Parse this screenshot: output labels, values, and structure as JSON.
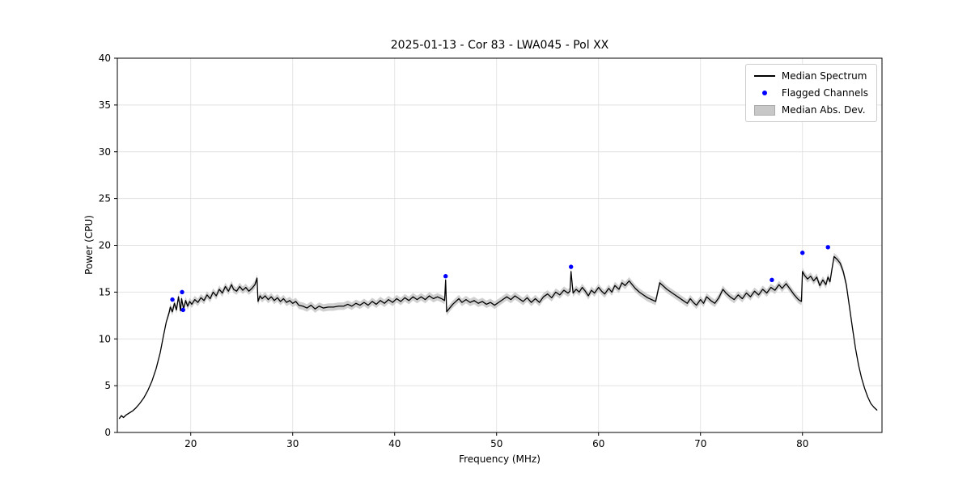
{
  "chart_data": {
    "type": "line",
    "title": "2025-01-13 - Cor 83 - LWA045 - Pol XX",
    "xlabel": "Frequency (MHz)",
    "ylabel": "Power (CPU)",
    "xlim": [
      12.8,
      87.8
    ],
    "ylim": [
      0,
      40
    ],
    "xticks": [
      20,
      30,
      40,
      50,
      60,
      70,
      80
    ],
    "yticks": [
      0,
      5,
      10,
      15,
      20,
      25,
      30,
      35,
      40
    ],
    "grid": true,
    "legend": {
      "position": "upper right",
      "items": [
        {
          "label": "Median Spectrum",
          "type": "line",
          "color": "#000000"
        },
        {
          "label": "Flagged Channels",
          "type": "dot",
          "color": "#0000ff"
        },
        {
          "label": "Median Abs. Dev.",
          "type": "patch",
          "color": "#c8c8c8"
        }
      ]
    },
    "series": [
      {
        "name": "Median Spectrum",
        "color": "#000000",
        "points": [
          [
            13.0,
            1.5
          ],
          [
            13.2,
            1.8
          ],
          [
            13.4,
            1.6
          ],
          [
            13.7,
            1.9
          ],
          [
            14.0,
            2.1
          ],
          [
            14.3,
            2.3
          ],
          [
            14.6,
            2.6
          ],
          [
            15.0,
            3.1
          ],
          [
            15.4,
            3.7
          ],
          [
            15.8,
            4.5
          ],
          [
            16.2,
            5.5
          ],
          [
            16.6,
            6.8
          ],
          [
            17.0,
            8.5
          ],
          [
            17.3,
            10.2
          ],
          [
            17.6,
            11.8
          ],
          [
            17.9,
            12.9
          ],
          [
            18.0,
            13.4
          ],
          [
            18.2,
            12.9
          ],
          [
            18.4,
            13.8
          ],
          [
            18.6,
            13.1
          ],
          [
            18.8,
            14.5
          ],
          [
            19.0,
            13.0
          ],
          [
            19.1,
            14.3
          ],
          [
            19.3,
            13.2
          ],
          [
            19.5,
            14.1
          ],
          [
            19.7,
            13.5
          ],
          [
            19.9,
            14.0
          ],
          [
            20.1,
            13.7
          ],
          [
            20.4,
            14.2
          ],
          [
            20.7,
            13.9
          ],
          [
            21.0,
            14.4
          ],
          [
            21.3,
            14.1
          ],
          [
            21.6,
            14.7
          ],
          [
            21.9,
            14.3
          ],
          [
            22.2,
            15.0
          ],
          [
            22.5,
            14.6
          ],
          [
            22.8,
            15.3
          ],
          [
            23.1,
            14.9
          ],
          [
            23.4,
            15.6
          ],
          [
            23.7,
            15.1
          ],
          [
            24.0,
            15.8
          ],
          [
            24.2,
            15.3
          ],
          [
            24.5,
            15.1
          ],
          [
            24.8,
            15.6
          ],
          [
            25.1,
            15.2
          ],
          [
            25.4,
            15.5
          ],
          [
            25.7,
            15.1
          ],
          [
            26.0,
            15.4
          ],
          [
            26.3,
            15.8
          ],
          [
            26.5,
            16.5
          ],
          [
            26.6,
            14.0
          ],
          [
            26.8,
            14.6
          ],
          [
            27.0,
            14.3
          ],
          [
            27.3,
            14.6
          ],
          [
            27.6,
            14.2
          ],
          [
            27.9,
            14.5
          ],
          [
            28.2,
            14.1
          ],
          [
            28.5,
            14.4
          ],
          [
            28.8,
            14.0
          ],
          [
            29.1,
            14.3
          ],
          [
            29.4,
            13.9
          ],
          [
            29.7,
            14.1
          ],
          [
            30.0,
            13.8
          ],
          [
            30.3,
            14.0
          ],
          [
            30.6,
            13.6
          ],
          [
            31.0,
            13.5
          ],
          [
            31.4,
            13.3
          ],
          [
            31.8,
            13.6
          ],
          [
            32.2,
            13.2
          ],
          [
            32.6,
            13.5
          ],
          [
            33.0,
            13.3
          ],
          [
            33.5,
            13.4
          ],
          [
            34.0,
            13.4
          ],
          [
            34.5,
            13.5
          ],
          [
            35.0,
            13.5
          ],
          [
            35.4,
            13.7
          ],
          [
            35.8,
            13.5
          ],
          [
            36.2,
            13.8
          ],
          [
            36.6,
            13.6
          ],
          [
            37.0,
            13.9
          ],
          [
            37.4,
            13.6
          ],
          [
            37.8,
            14.0
          ],
          [
            38.2,
            13.7
          ],
          [
            38.6,
            14.1
          ],
          [
            39.0,
            13.8
          ],
          [
            39.4,
            14.2
          ],
          [
            39.8,
            13.9
          ],
          [
            40.2,
            14.3
          ],
          [
            40.6,
            14.0
          ],
          [
            41.0,
            14.4
          ],
          [
            41.4,
            14.1
          ],
          [
            41.8,
            14.5
          ],
          [
            42.2,
            14.2
          ],
          [
            42.6,
            14.5
          ],
          [
            43.0,
            14.2
          ],
          [
            43.4,
            14.6
          ],
          [
            43.8,
            14.3
          ],
          [
            44.2,
            14.5
          ],
          [
            44.6,
            14.3
          ],
          [
            44.9,
            14.1
          ],
          [
            45.0,
            16.3
          ],
          [
            45.1,
            12.9
          ],
          [
            45.4,
            13.3
          ],
          [
            45.7,
            13.7
          ],
          [
            46.0,
            14.0
          ],
          [
            46.3,
            14.3
          ],
          [
            46.6,
            13.9
          ],
          [
            47.0,
            14.2
          ],
          [
            47.4,
            13.9
          ],
          [
            47.8,
            14.1
          ],
          [
            48.2,
            13.8
          ],
          [
            48.6,
            14.0
          ],
          [
            49.0,
            13.7
          ],
          [
            49.4,
            13.9
          ],
          [
            49.8,
            13.6
          ],
          [
            50.2,
            13.9
          ],
          [
            50.6,
            14.2
          ],
          [
            51.0,
            14.5
          ],
          [
            51.4,
            14.2
          ],
          [
            51.8,
            14.6
          ],
          [
            52.2,
            14.3
          ],
          [
            52.6,
            14.0
          ],
          [
            53.0,
            14.4
          ],
          [
            53.4,
            13.9
          ],
          [
            53.8,
            14.3
          ],
          [
            54.2,
            13.9
          ],
          [
            54.6,
            14.5
          ],
          [
            55.0,
            14.8
          ],
          [
            55.4,
            14.4
          ],
          [
            55.8,
            15.0
          ],
          [
            56.2,
            14.7
          ],
          [
            56.6,
            15.2
          ],
          [
            57.0,
            14.9
          ],
          [
            57.2,
            15.1
          ],
          [
            57.3,
            17.2
          ],
          [
            57.5,
            14.9
          ],
          [
            57.8,
            15.3
          ],
          [
            58.1,
            15.0
          ],
          [
            58.4,
            15.5
          ],
          [
            58.7,
            15.1
          ],
          [
            59.0,
            14.6
          ],
          [
            59.3,
            15.2
          ],
          [
            59.6,
            14.9
          ],
          [
            60.0,
            15.5
          ],
          [
            60.3,
            15.1
          ],
          [
            60.6,
            14.8
          ],
          [
            61.0,
            15.4
          ],
          [
            61.3,
            15.0
          ],
          [
            61.6,
            15.7
          ],
          [
            62.0,
            15.3
          ],
          [
            62.3,
            16.0
          ],
          [
            62.6,
            15.7
          ],
          [
            63.0,
            16.2
          ],
          [
            63.3,
            15.8
          ],
          [
            63.6,
            15.4
          ],
          [
            64.0,
            15.0
          ],
          [
            64.4,
            14.7
          ],
          [
            64.8,
            14.4
          ],
          [
            65.2,
            14.2
          ],
          [
            65.6,
            14.0
          ],
          [
            66.0,
            16.0
          ],
          [
            66.3,
            15.7
          ],
          [
            66.7,
            15.3
          ],
          [
            67.1,
            15.0
          ],
          [
            67.5,
            14.7
          ],
          [
            67.9,
            14.4
          ],
          [
            68.3,
            14.1
          ],
          [
            68.7,
            13.8
          ],
          [
            69.0,
            14.3
          ],
          [
            69.3,
            13.9
          ],
          [
            69.6,
            13.6
          ],
          [
            70.0,
            14.2
          ],
          [
            70.3,
            13.8
          ],
          [
            70.6,
            14.5
          ],
          [
            71.0,
            14.1
          ],
          [
            71.4,
            13.8
          ],
          [
            71.8,
            14.4
          ],
          [
            72.2,
            15.3
          ],
          [
            72.5,
            14.9
          ],
          [
            72.9,
            14.5
          ],
          [
            73.3,
            14.2
          ],
          [
            73.7,
            14.7
          ],
          [
            74.1,
            14.3
          ],
          [
            74.5,
            14.9
          ],
          [
            74.9,
            14.5
          ],
          [
            75.3,
            15.1
          ],
          [
            75.7,
            14.7
          ],
          [
            76.1,
            15.3
          ],
          [
            76.5,
            14.9
          ],
          [
            76.9,
            15.5
          ],
          [
            77.3,
            15.2
          ],
          [
            77.7,
            15.8
          ],
          [
            78.0,
            15.4
          ],
          [
            78.4,
            15.9
          ],
          [
            78.8,
            15.3
          ],
          [
            79.2,
            14.7
          ],
          [
            79.6,
            14.2
          ],
          [
            79.9,
            14.0
          ],
          [
            80.0,
            17.2
          ],
          [
            80.2,
            16.8
          ],
          [
            80.5,
            16.4
          ],
          [
            80.8,
            16.7
          ],
          [
            81.1,
            16.2
          ],
          [
            81.4,
            16.6
          ],
          [
            81.7,
            15.7
          ],
          [
            82.0,
            16.3
          ],
          [
            82.3,
            15.8
          ],
          [
            82.5,
            16.6
          ],
          [
            82.7,
            16.1
          ],
          [
            82.9,
            17.5
          ],
          [
            83.1,
            18.8
          ],
          [
            83.4,
            18.5
          ],
          [
            83.7,
            18.1
          ],
          [
            84.0,
            17.2
          ],
          [
            84.3,
            15.8
          ],
          [
            84.6,
            13.5
          ],
          [
            84.9,
            11.2
          ],
          [
            85.2,
            9.0
          ],
          [
            85.5,
            7.2
          ],
          [
            85.8,
            5.8
          ],
          [
            86.1,
            4.7
          ],
          [
            86.4,
            3.8
          ],
          [
            86.7,
            3.1
          ],
          [
            87.0,
            2.7
          ],
          [
            87.3,
            2.4
          ]
        ]
      }
    ],
    "flagged_channels": [
      [
        18.2,
        14.2
      ],
      [
        19.15,
        15.0
      ],
      [
        19.25,
        13.1
      ],
      [
        45.0,
        16.7
      ],
      [
        57.3,
        17.7
      ],
      [
        77.0,
        16.3
      ],
      [
        80.0,
        19.2
      ],
      [
        82.5,
        19.8
      ]
    ],
    "mad_band": {
      "halfwidth": 0.4,
      "range": [
        17.9,
        84.3
      ],
      "edge_halfwidth": 0.08
    }
  },
  "colors": {
    "line": "#000000",
    "flagged": "#0000ff",
    "band": "#c0c0c0",
    "grid": "#e2e2e2",
    "frame": "#000000"
  }
}
